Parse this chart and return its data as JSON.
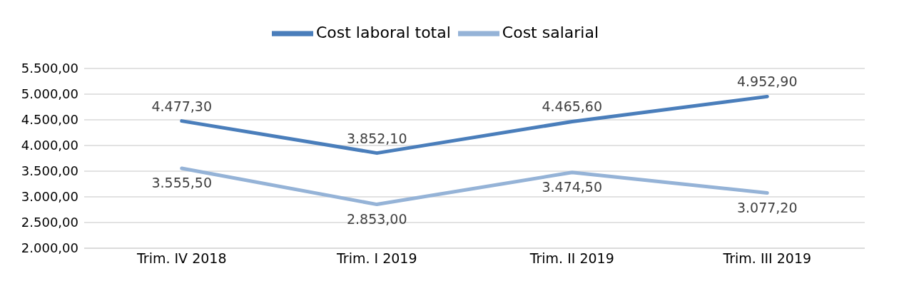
{
  "chart_data": {
    "type": "line",
    "categories": [
      "Trim. IV 2018",
      "Trim. I 2019",
      "Trim. II 2019",
      "Trim. III 2019"
    ],
    "series": [
      {
        "name": "Cost laboral total",
        "color": "#4a7ebb",
        "values": [
          4477.3,
          3852.1,
          4465.6,
          4952.9
        ],
        "value_labels": [
          "4.477,30",
          "3.852,10",
          "4.465,60",
          "4.952,90"
        ]
      },
      {
        "name": "Cost salarial",
        "color": "#95b3d7",
        "values": [
          3555.5,
          2853.0,
          3474.5,
          3077.2
        ],
        "value_labels": [
          "3.555,50",
          "2.853,00",
          "3.474,50",
          "3.077,20"
        ]
      }
    ],
    "ylim": [
      2000,
      5500
    ],
    "yticks": [
      {
        "value": 2000,
        "label": "2.000,00"
      },
      {
        "value": 2500,
        "label": "2.500,00"
      },
      {
        "value": 3000,
        "label": "3.000,00"
      },
      {
        "value": 3500,
        "label": "3.500,00"
      },
      {
        "value": 4000,
        "label": "4.000,00"
      },
      {
        "value": 4500,
        "label": "4.500,00"
      },
      {
        "value": 5000,
        "label": "5.000,00"
      },
      {
        "value": 5500,
        "label": "5.500,00"
      }
    ],
    "grid": "y",
    "legend": "top",
    "marker": "none",
    "line_style": "solid"
  }
}
